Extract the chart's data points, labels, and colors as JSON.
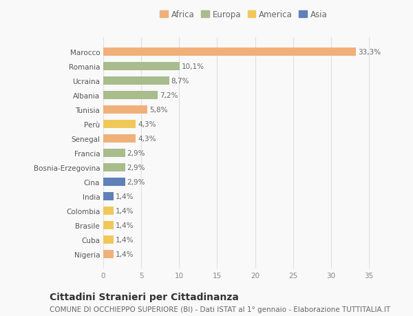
{
  "countries": [
    "Nigeria",
    "Cuba",
    "Brasile",
    "Colombia",
    "India",
    "Cina",
    "Bosnia-Erzegovina",
    "Francia",
    "Senegal",
    "Perù",
    "Tunisia",
    "Albania",
    "Ucraina",
    "Romania",
    "Marocco"
  ],
  "values": [
    1.4,
    1.4,
    1.4,
    1.4,
    1.4,
    2.9,
    2.9,
    2.9,
    4.3,
    4.3,
    5.8,
    7.2,
    8.7,
    10.1,
    33.3
  ],
  "labels": [
    "1,4%",
    "1,4%",
    "1,4%",
    "1,4%",
    "1,4%",
    "2,9%",
    "2,9%",
    "2,9%",
    "4,3%",
    "4,3%",
    "5,8%",
    "7,2%",
    "8,7%",
    "10,1%",
    "33,3%"
  ],
  "colors": [
    "#f0b07a",
    "#f0c85a",
    "#f0c85a",
    "#f0c85a",
    "#6080b8",
    "#6080b8",
    "#a8bc8c",
    "#a8bc8c",
    "#f0b07a",
    "#f0c85a",
    "#f0b07a",
    "#a8bc8c",
    "#a8bc8c",
    "#a8bc8c",
    "#f0b07a"
  ],
  "legend": {
    "Africa": "#f0b07a",
    "Europa": "#a8bc8c",
    "America": "#f0c85a",
    "Asia": "#6080b8"
  },
  "title": "Cittadini Stranieri per Cittadinanza",
  "subtitle": "COMUNE DI OCCHIEPPO SUPERIORE (BI) - Dati ISTAT al 1° gennaio - Elaborazione TUTTITALIA.IT",
  "xlim": [
    0,
    37
  ],
  "xticks": [
    0,
    5,
    10,
    15,
    20,
    25,
    30,
    35
  ],
  "background_color": "#f9f9f9",
  "grid_color": "#e0e0e0",
  "bar_height": 0.55,
  "title_fontsize": 10,
  "subtitle_fontsize": 7.5,
  "label_fontsize": 7.5,
  "tick_fontsize": 7.5,
  "legend_fontsize": 8.5
}
